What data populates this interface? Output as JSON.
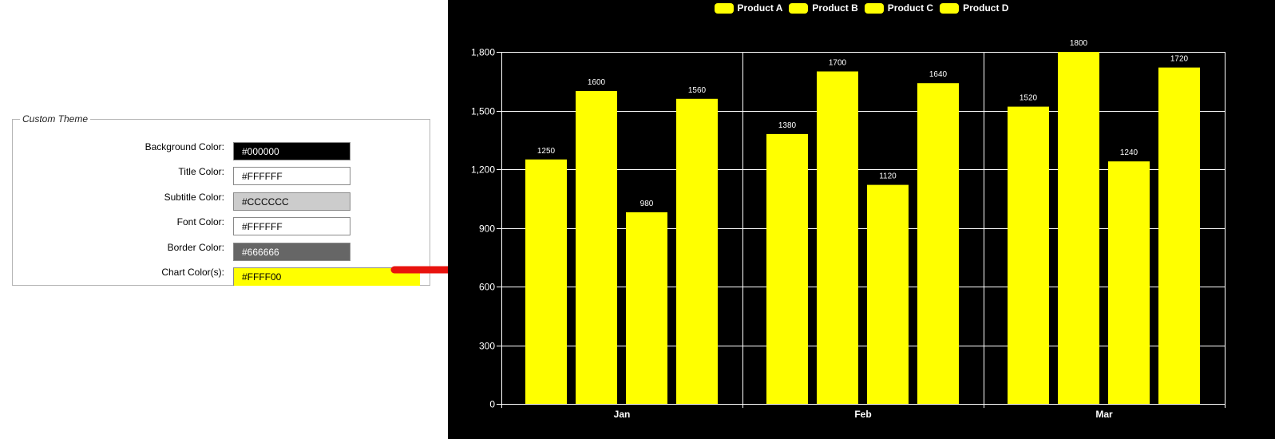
{
  "theme_panel": {
    "legend": "Custom Theme",
    "rows": [
      {
        "label": "Background Color:",
        "value": "#000000",
        "bg": "#000000",
        "fg": "#ffffff"
      },
      {
        "label": "Title Color:",
        "value": "#FFFFFF",
        "bg": "#FFFFFF",
        "fg": "#000000"
      },
      {
        "label": "Subtitle Color:",
        "value": "#CCCCCC",
        "bg": "#CCCCCC",
        "fg": "#000000"
      },
      {
        "label": "Font Color:",
        "value": "#FFFFFF",
        "bg": "#FFFFFF",
        "fg": "#000000"
      },
      {
        "label": "Border Color:",
        "value": "#666666",
        "bg": "#666666",
        "fg": "#ffffff"
      },
      {
        "label": "Chart Color(s):",
        "value": "#FFFF00",
        "bg": "#FFFF00",
        "fg": "#000000"
      }
    ]
  },
  "arrow_color": "#e8130e",
  "chart_data": {
    "type": "bar",
    "categories": [
      "Jan",
      "Feb",
      "Mar"
    ],
    "series": [
      {
        "name": "Product A",
        "values": [
          1250,
          1380,
          1520
        ]
      },
      {
        "name": "Product B",
        "values": [
          1600,
          1700,
          1800
        ]
      },
      {
        "name": "Product C",
        "values": [
          980,
          1120,
          1240
        ]
      },
      {
        "name": "Product D",
        "values": [
          1560,
          1640,
          1720
        ]
      }
    ],
    "ylim": [
      0,
      1800
    ],
    "yticks": [
      0,
      300,
      600,
      900,
      1200,
      1500,
      1800
    ],
    "ytick_labels": [
      "0",
      "300",
      "600",
      "900",
      "1,200",
      "1,500",
      "1,800"
    ],
    "bar_color": "#FFFF00",
    "background": "#000000",
    "grid": true,
    "legend_position": "top-center",
    "data_labels": true
  }
}
